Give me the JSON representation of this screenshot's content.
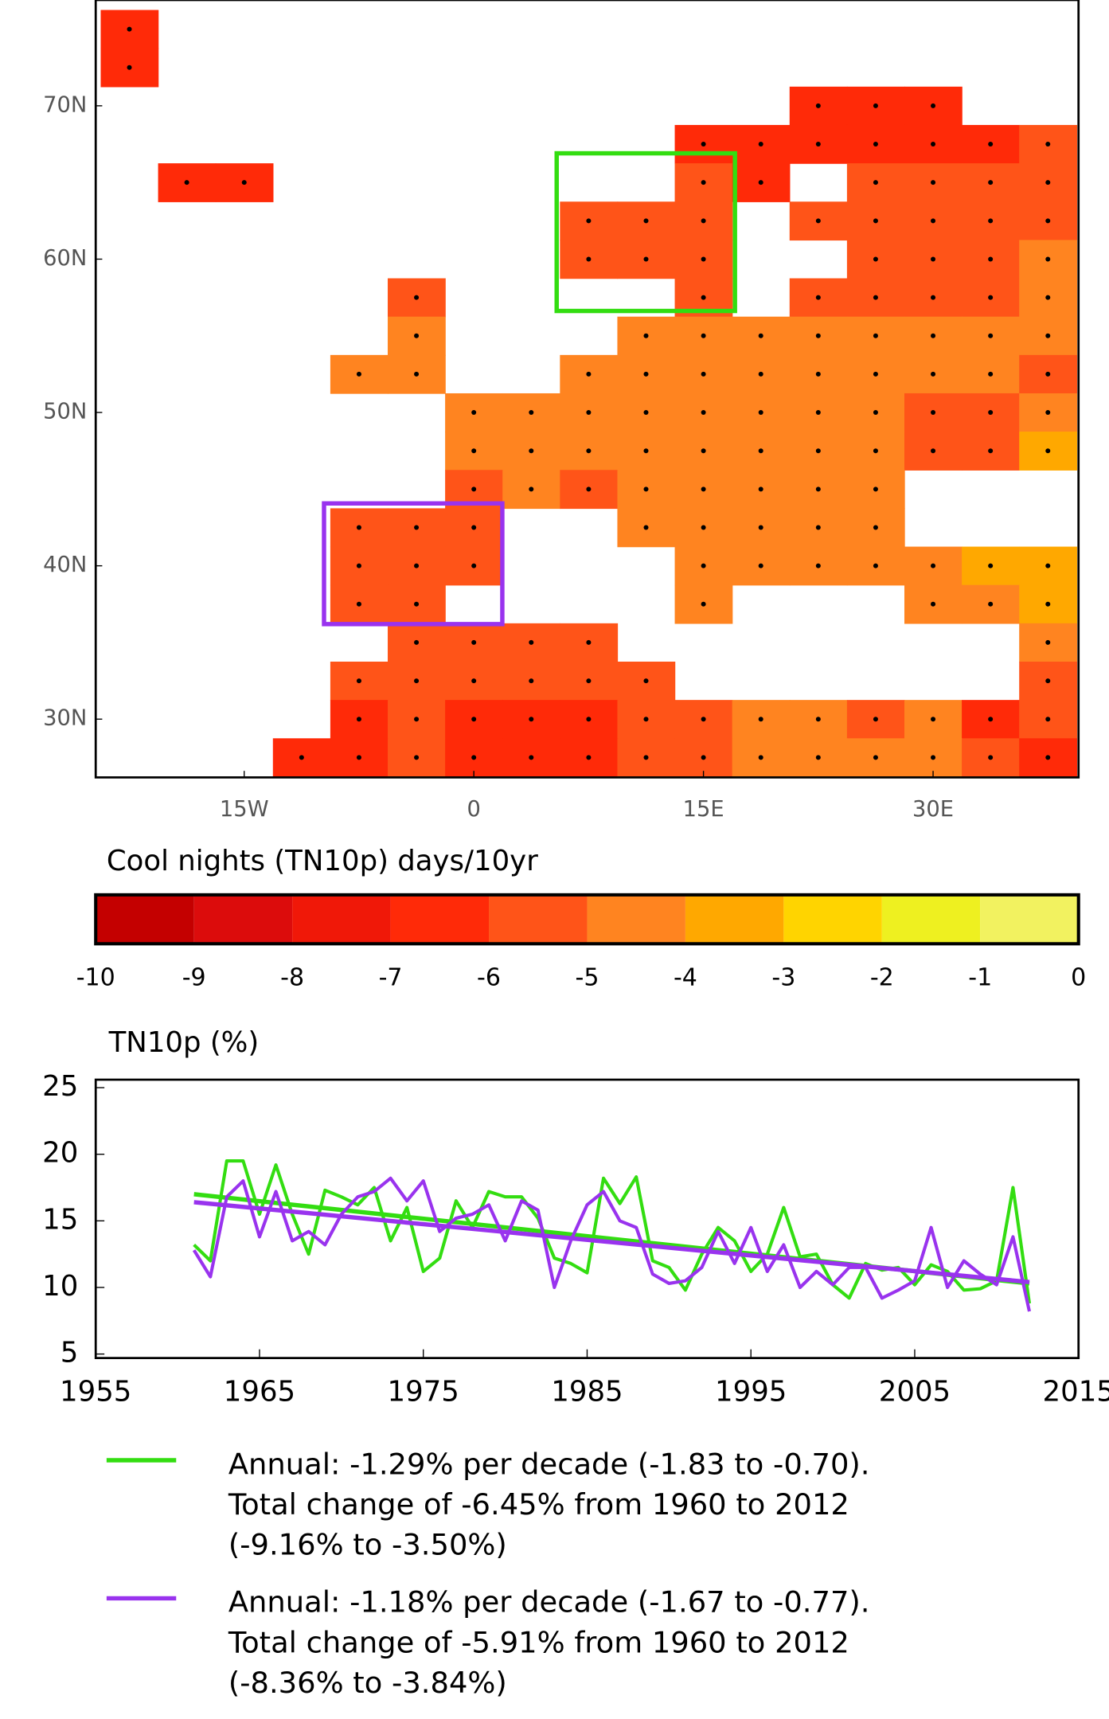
{
  "chart_data": [
    {
      "type": "heatmap",
      "x": [
        -22.5,
        -18.75,
        -15,
        -11.25,
        -7.5,
        -3.75,
        0,
        3.75,
        7.5,
        11.25,
        15,
        18.75,
        22.5,
        26.25,
        30,
        33.75,
        37.5
      ],
      "y": [
        75,
        72.5,
        70,
        67.5,
        65,
        62.5,
        60,
        57.5,
        55,
        52.5,
        50,
        47.5,
        45,
        42.5,
        40,
        37.5,
        35,
        32.5,
        30,
        27.5
      ],
      "values": [
        [
          -6.5,
          null,
          null,
          null,
          null,
          null,
          null,
          null,
          null,
          null,
          null,
          null,
          null,
          null,
          null,
          null,
          null
        ],
        [
          -6.5,
          null,
          null,
          null,
          null,
          null,
          null,
          null,
          null,
          null,
          null,
          null,
          null,
          null,
          null,
          null,
          null
        ],
        [
          null,
          null,
          null,
          null,
          null,
          null,
          null,
          null,
          null,
          null,
          null,
          null,
          -6.5,
          -6.5,
          -6.5,
          null,
          null
        ],
        [
          null,
          null,
          null,
          null,
          null,
          null,
          null,
          null,
          null,
          null,
          -6.5,
          -6.5,
          -6.5,
          -6.5,
          -6.5,
          -6.5,
          -5.5
        ],
        [
          null,
          -6.5,
          -6.5,
          null,
          null,
          null,
          null,
          null,
          null,
          null,
          -5.5,
          -6.5,
          null,
          -5.5,
          -5.5,
          -5.5,
          -5.5
        ],
        [
          null,
          null,
          null,
          null,
          null,
          null,
          null,
          null,
          -5.5,
          -5.5,
          -5.5,
          null,
          -5.5,
          -5.5,
          -5.5,
          -5.5,
          -5.5
        ],
        [
          null,
          null,
          null,
          null,
          null,
          null,
          null,
          null,
          -5.5,
          -5.5,
          -5.5,
          null,
          null,
          -5.5,
          -5.5,
          -5.5,
          -4.5
        ],
        [
          null,
          null,
          null,
          null,
          null,
          -5.5,
          null,
          null,
          null,
          null,
          -5.5,
          null,
          -5.5,
          -5.5,
          -5.5,
          -5.5,
          -4.5
        ],
        [
          null,
          null,
          null,
          null,
          null,
          -4.5,
          null,
          null,
          null,
          -4.5,
          -4.5,
          -4.5,
          -4.5,
          -4.5,
          -4.5,
          -4.5,
          -4.5
        ],
        [
          null,
          null,
          null,
          null,
          -4.5,
          -4.5,
          null,
          null,
          -4.5,
          -4.5,
          -4.5,
          -4.5,
          -4.5,
          -4.5,
          -4.5,
          -4.5,
          -5.5
        ],
        [
          null,
          null,
          null,
          null,
          null,
          null,
          -4.5,
          -4.5,
          -4.5,
          -4.5,
          -4.5,
          -4.5,
          -4.5,
          -4.5,
          -5.5,
          -5.5,
          -4.5
        ],
        [
          null,
          null,
          null,
          null,
          null,
          null,
          -4.5,
          -4.5,
          -4.5,
          -4.5,
          -4.5,
          -4.5,
          -4.5,
          -4.5,
          -5.5,
          -5.5,
          -3.5
        ],
        [
          null,
          null,
          null,
          null,
          null,
          null,
          -5.5,
          -4.5,
          -5.5,
          -4.5,
          -4.5,
          -4.5,
          -4.5,
          -4.5,
          null,
          null,
          null
        ],
        [
          null,
          null,
          null,
          null,
          -5.5,
          -5.5,
          -5.5,
          null,
          null,
          -4.5,
          -4.5,
          -4.5,
          -4.5,
          -4.5,
          null,
          null,
          null
        ],
        [
          null,
          null,
          null,
          null,
          -5.5,
          -5.5,
          -5.5,
          null,
          null,
          null,
          -4.5,
          -4.5,
          -4.5,
          -4.5,
          -4.5,
          -3.5,
          -3.5
        ],
        [
          null,
          null,
          null,
          null,
          -5.5,
          -5.5,
          null,
          null,
          null,
          null,
          -4.5,
          null,
          null,
          null,
          -4.5,
          -4.5,
          -3.5
        ],
        [
          null,
          null,
          null,
          null,
          null,
          -5.5,
          -5.5,
          -5.5,
          -5.5,
          null,
          null,
          null,
          null,
          null,
          null,
          null,
          -4.5
        ],
        [
          null,
          null,
          null,
          null,
          -5.5,
          -5.5,
          -5.5,
          -5.5,
          -5.5,
          -5.5,
          null,
          null,
          null,
          null,
          null,
          null,
          -5.5
        ],
        [
          null,
          null,
          null,
          null,
          -6.5,
          -5.5,
          -6.5,
          -6.5,
          -6.5,
          -5.5,
          -5.5,
          -4.5,
          -4.5,
          -5.5,
          -4.5,
          -6.5,
          -5.5
        ],
        [
          null,
          null,
          null,
          -6.5,
          -6.5,
          -5.5,
          -6.5,
          -6.5,
          -6.5,
          -5.5,
          -5.5,
          -4.5,
          -4.5,
          -4.5,
          -4.5,
          -5.5,
          -6.5
        ]
      ],
      "xlim": [
        -24.7,
        39.5
      ],
      "ylim": [
        26.2,
        76.9
      ],
      "xticks": [
        {
          "value": -15,
          "label": "15W"
        },
        0,
        {
          "value": 15,
          "label": "15E"
        },
        {
          "value": 30,
          "label": "30E"
        }
      ],
      "yticks": [
        {
          "value": 30,
          "label": "30N"
        },
        {
          "value": 40,
          "label": "40N"
        },
        {
          "value": 50,
          "label": "50N"
        },
        {
          "value": 60,
          "label": "60N"
        },
        {
          "value": 70,
          "label": "70N"
        }
      ]
    },
    {
      "type": "colorbar",
      "title": "Cool nights (TN10p) days/10yr",
      "xlim": [
        -10,
        0
      ],
      "xticks": [
        -10,
        -9,
        -8,
        -7,
        -6,
        -5,
        -4,
        -3,
        -2,
        -1,
        0
      ],
      "colors": [
        "#c40000",
        "#dc0c0c",
        "#f01808",
        "#ff2a08",
        "#ff5418",
        "#ff8420",
        "#ffa800",
        "#ffd400",
        "#eef020",
        "#f2f260"
      ]
    },
    {
      "type": "line",
      "title": "TN10p (%)",
      "x": [
        1961,
        1962,
        1963,
        1964,
        1965,
        1966,
        1967,
        1968,
        1969,
        1970,
        1971,
        1972,
        1973,
        1974,
        1975,
        1976,
        1977,
        1978,
        1979,
        1980,
        1981,
        1982,
        1983,
        1984,
        1985,
        1986,
        1987,
        1988,
        1989,
        1990,
        1991,
        1992,
        1993,
        1994,
        1995,
        1996,
        1997,
        1998,
        1999,
        2000,
        2001,
        2002,
        2003,
        2004,
        2005,
        2006,
        2007,
        2008,
        2009,
        2010,
        2011,
        2012
      ],
      "xlim": [
        1955,
        2015
      ],
      "ylim": [
        4.7,
        25.6
      ],
      "xticks": [
        1955,
        1965,
        1975,
        1985,
        1995,
        2005,
        2015
      ],
      "yticks": [
        5,
        10,
        15,
        20,
        25
      ],
      "series": [
        {
          "color": "#33dd11",
          "legend": [
            "Annual: -1.29%  per decade (-1.83 to -0.70).",
            "Total change of -6.45% from 1960 to 2012",
            "(-9.16% to -3.50%)"
          ],
          "values": [
            13.2,
            12,
            19.5,
            19.5,
            15.5,
            19.2,
            15.5,
            12.5,
            17.3,
            16.8,
            16.2,
            17.5,
            13.5,
            16,
            11.2,
            12.2,
            16.5,
            14.5,
            17.2,
            16.8,
            16.8,
            15.2,
            12.2,
            11.8,
            11.1,
            18.2,
            16.3,
            18.3,
            12,
            11.5,
            9.8,
            12.5,
            14.5,
            13.5,
            11.2,
            12.5,
            16,
            12.3,
            12.5,
            10.2,
            9.2,
            11.8,
            11.3,
            11.5,
            10.2,
            11.7,
            11.2,
            9.8,
            9.9,
            10.5,
            17.5,
            8.8
          ],
          "trend": [
            17.0,
            10.3
          ]
        },
        {
          "color": "#9933ee",
          "legend": [
            "Annual: -1.18%  per decade (-1.67 to -0.77).",
            "Total change of -5.91% from 1960 to 2012",
            "(-8.36% to -3.84%)"
          ],
          "values": [
            12.8,
            10.8,
            16.8,
            18,
            13.8,
            17.2,
            13.5,
            14.2,
            13.2,
            15.5,
            16.8,
            17.2,
            18.2,
            16.5,
            18,
            14.2,
            15.2,
            15.5,
            16.2,
            13.5,
            16.5,
            15.8,
            10,
            13.5,
            16.2,
            17.2,
            15,
            14.5,
            11,
            10.3,
            10.5,
            11.5,
            14.2,
            11.8,
            14.5,
            11.2,
            13.2,
            10,
            11.2,
            10.2,
            11.5,
            11.5,
            9.2,
            9.8,
            10.5,
            14.5,
            10,
            12,
            11,
            10.2,
            13.8,
            8.2
          ],
          "trend": [
            16.4,
            10.4
          ]
        }
      ]
    }
  ]
}
